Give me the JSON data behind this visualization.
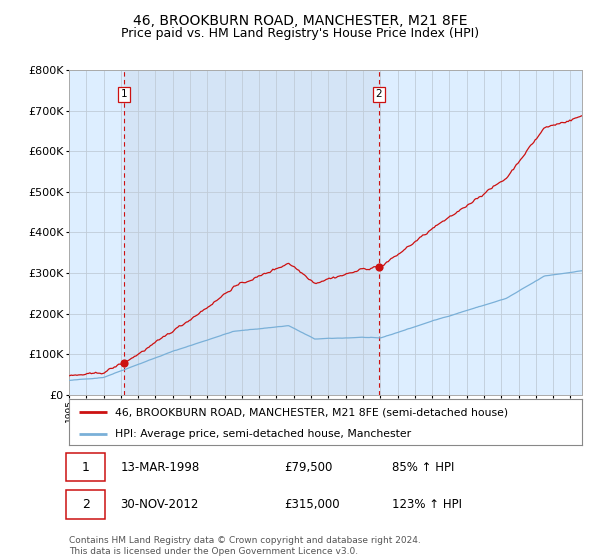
{
  "title": "46, BROOKBURN ROAD, MANCHESTER, M21 8FE",
  "subtitle": "Price paid vs. HM Land Registry's House Price Index (HPI)",
  "legend_line1": "46, BROOKBURN ROAD, MANCHESTER, M21 8FE (semi-detached house)",
  "legend_line2": "HPI: Average price, semi-detached house, Manchester",
  "footnote": "Contains HM Land Registry data © Crown copyright and database right 2024.\nThis data is licensed under the Open Government Licence v3.0.",
  "sale1_date": "13-MAR-1998",
  "sale1_price": "£79,500",
  "sale1_hpi": "85% ↑ HPI",
  "sale2_date": "30-NOV-2012",
  "sale2_price": "£315,000",
  "sale2_hpi": "123% ↑ HPI",
  "sale1_x": 1998.19,
  "sale1_y": 79500,
  "sale2_x": 2012.92,
  "sale2_y": 315000,
  "hpi_color": "#7ab0d8",
  "price_color": "#cc1111",
  "plot_bg": "#ddeeff",
  "plot_bg_between": "#c8ddf0",
  "grid_color": "#c8d8e8",
  "dashed_color": "#cc1111",
  "title_fontsize": 10,
  "subtitle_fontsize": 9,
  "ylim": [
    0,
    800000
  ],
  "xlim_start": 1995.0,
  "xlim_end": 2024.67
}
